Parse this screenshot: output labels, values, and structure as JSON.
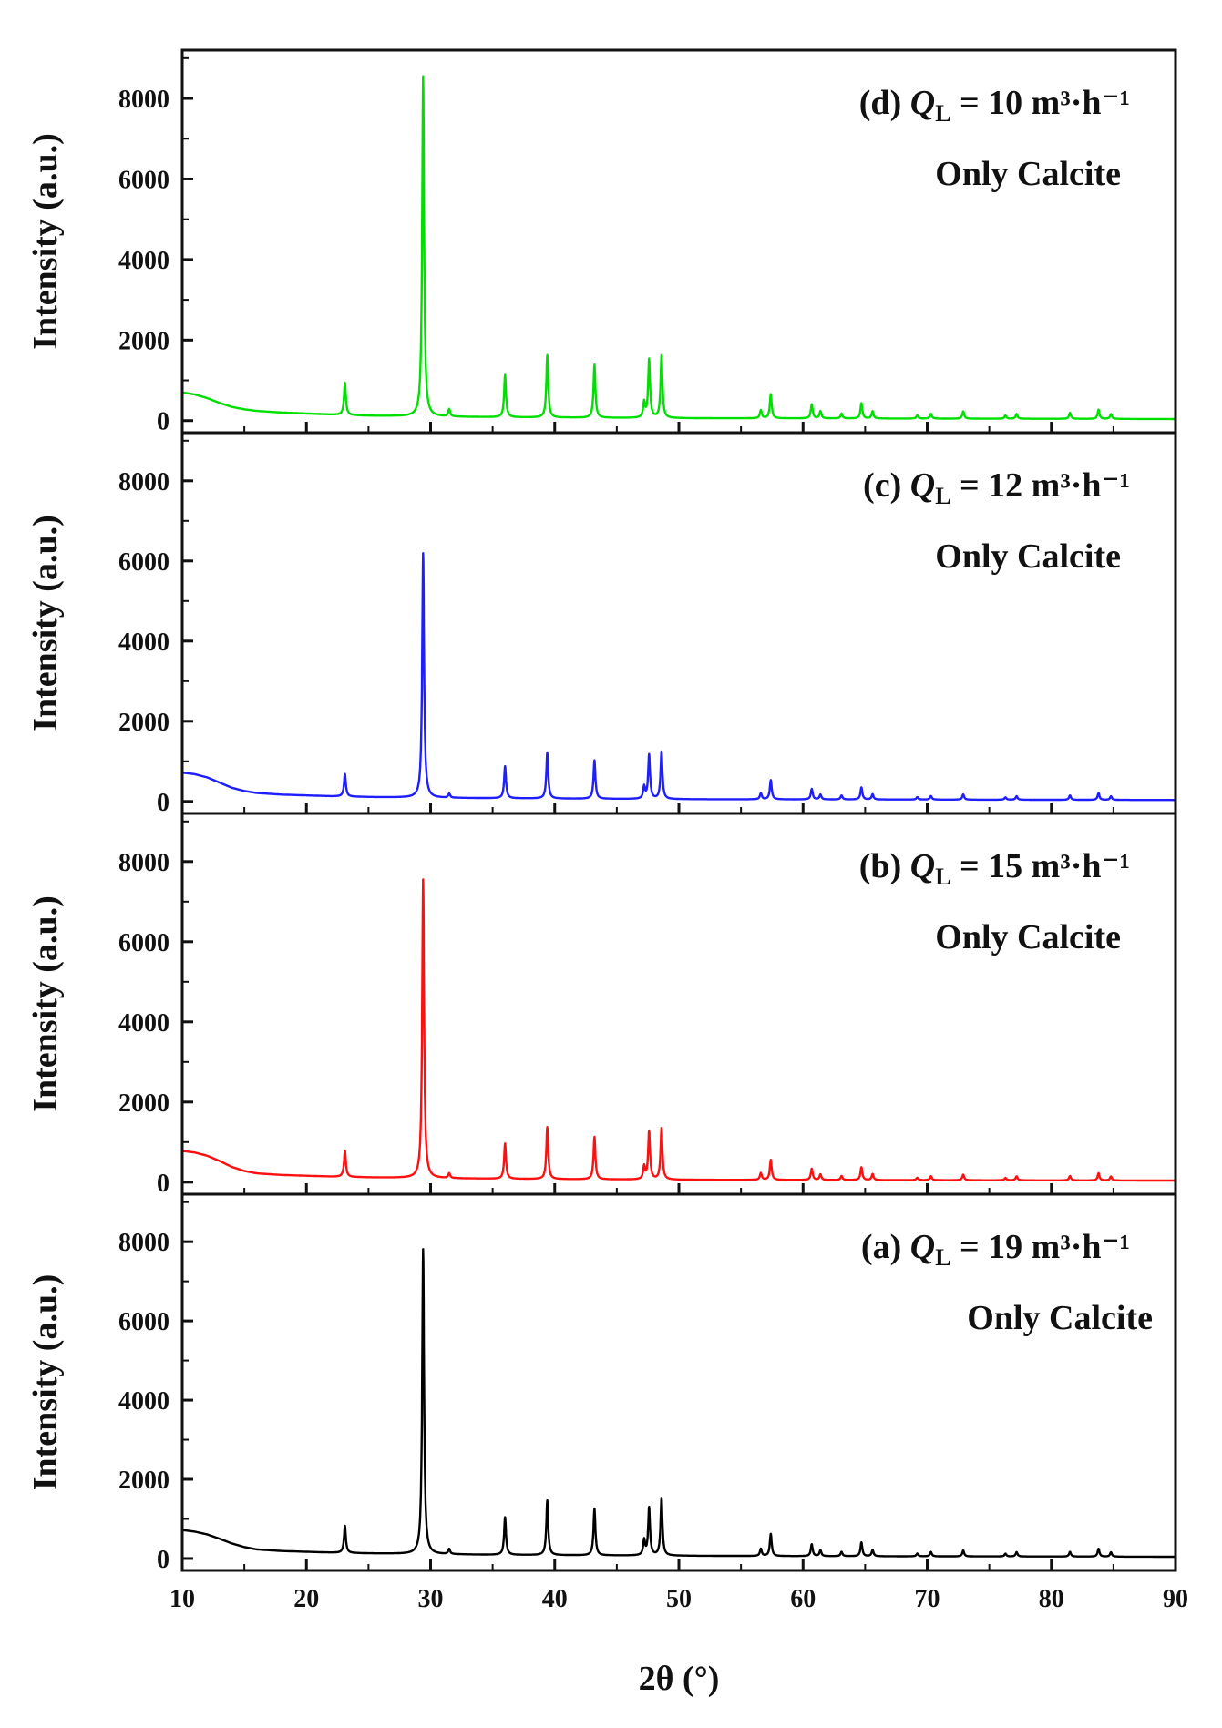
{
  "x_axis": {
    "label": "2θ (°)",
    "ticks": [
      "10",
      "20",
      "30",
      "40",
      "50",
      "60",
      "70",
      "80",
      "90"
    ]
  },
  "y_axis": {
    "label": "Intensity (a.u.)",
    "ticks": [
      "0",
      "2000",
      "4000",
      "6000",
      "8000"
    ]
  },
  "chart_data": [
    {
      "type": "line",
      "panel": "d",
      "annotation": {
        "prefix": "(d) ",
        "var": "Q",
        "sub": "L",
        "rest": " = 10 m³·h⁻¹"
      },
      "note": "Only Calcite",
      "color": "#00e000",
      "xlim": [
        10,
        90
      ],
      "ylim": [
        -300,
        9200
      ],
      "background": [
        [
          10,
          700
        ],
        [
          11,
          650
        ],
        [
          12,
          560
        ],
        [
          13,
          440
        ],
        [
          14,
          340
        ],
        [
          15,
          280
        ],
        [
          16,
          240
        ],
        [
          18,
          200
        ],
        [
          20,
          175
        ],
        [
          22,
          150
        ],
        [
          25,
          120
        ],
        [
          30,
          100
        ],
        [
          35,
          85
        ],
        [
          40,
          75
        ],
        [
          50,
          60
        ],
        [
          60,
          55
        ],
        [
          70,
          50
        ],
        [
          80,
          45
        ],
        [
          90,
          40
        ]
      ],
      "peaks": [
        [
          23.1,
          800
        ],
        [
          29.4,
          8450
        ],
        [
          31.5,
          180
        ],
        [
          36.0,
          1050
        ],
        [
          39.4,
          1550
        ],
        [
          43.2,
          1320
        ],
        [
          47.2,
          380
        ],
        [
          47.6,
          1450
        ],
        [
          48.6,
          1550
        ],
        [
          56.6,
          200
        ],
        [
          57.4,
          600
        ],
        [
          60.7,
          350
        ],
        [
          61.4,
          180
        ],
        [
          63.1,
          120
        ],
        [
          64.7,
          380
        ],
        [
          65.6,
          180
        ],
        [
          69.2,
          80
        ],
        [
          70.3,
          120
        ],
        [
          72.9,
          180
        ],
        [
          76.3,
          80
        ],
        [
          77.2,
          120
        ],
        [
          81.5,
          150
        ],
        [
          83.8,
          230
        ],
        [
          84.8,
          120
        ]
      ]
    },
    {
      "type": "line",
      "panel": "c",
      "annotation": {
        "prefix": "(c) ",
        "var": "Q",
        "sub": "L",
        "rest": " = 12 m³·h⁻¹"
      },
      "note": "Only Calcite",
      "color": "#1e1eff",
      "xlim": [
        10,
        90
      ],
      "ylim": [
        -300,
        9200
      ],
      "background": [
        [
          10,
          720
        ],
        [
          11,
          680
        ],
        [
          12,
          600
        ],
        [
          13,
          470
        ],
        [
          14,
          340
        ],
        [
          15,
          260
        ],
        [
          16,
          210
        ],
        [
          18,
          170
        ],
        [
          20,
          150
        ],
        [
          22,
          130
        ],
        [
          25,
          110
        ],
        [
          30,
          90
        ],
        [
          35,
          80
        ],
        [
          40,
          70
        ],
        [
          50,
          55
        ],
        [
          60,
          50
        ],
        [
          70,
          45
        ],
        [
          80,
          40
        ],
        [
          90,
          35
        ]
      ],
      "peaks": [
        [
          23.1,
          560
        ],
        [
          29.4,
          6100
        ],
        [
          31.5,
          100
        ],
        [
          36.0,
          800
        ],
        [
          39.4,
          1150
        ],
        [
          43.2,
          960
        ],
        [
          47.2,
          300
        ],
        [
          47.6,
          1100
        ],
        [
          48.6,
          1180
        ],
        [
          56.6,
          150
        ],
        [
          57.4,
          480
        ],
        [
          60.7,
          260
        ],
        [
          61.4,
          120
        ],
        [
          63.1,
          100
        ],
        [
          64.7,
          300
        ],
        [
          65.6,
          130
        ],
        [
          69.2,
          60
        ],
        [
          70.3,
          90
        ],
        [
          72.9,
          130
        ],
        [
          76.3,
          60
        ],
        [
          77.2,
          90
        ],
        [
          81.5,
          110
        ],
        [
          83.8,
          170
        ],
        [
          84.8,
          90
        ]
      ]
    },
    {
      "type": "line",
      "panel": "b",
      "annotation": {
        "prefix": "(b) ",
        "var": "Q",
        "sub": "L",
        "rest": " = 15 m³·h⁻¹"
      },
      "note": "Only Calcite",
      "color": "#ff1010",
      "xlim": [
        10,
        90
      ],
      "ylim": [
        -300,
        9200
      ],
      "background": [
        [
          10,
          780
        ],
        [
          11,
          740
        ],
        [
          12,
          660
        ],
        [
          13,
          530
        ],
        [
          14,
          380
        ],
        [
          15,
          280
        ],
        [
          16,
          220
        ],
        [
          18,
          180
        ],
        [
          20,
          160
        ],
        [
          22,
          140
        ],
        [
          25,
          120
        ],
        [
          30,
          100
        ],
        [
          35,
          85
        ],
        [
          40,
          75
        ],
        [
          50,
          60
        ],
        [
          60,
          55
        ],
        [
          70,
          50
        ],
        [
          80,
          45
        ],
        [
          90,
          40
        ]
      ],
      "peaks": [
        [
          23.1,
          650
        ],
        [
          29.4,
          7450
        ],
        [
          31.5,
          120
        ],
        [
          36.0,
          880
        ],
        [
          39.4,
          1300
        ],
        [
          43.2,
          1060
        ],
        [
          47.2,
          320
        ],
        [
          47.6,
          1200
        ],
        [
          48.6,
          1280
        ],
        [
          56.6,
          170
        ],
        [
          57.4,
          500
        ],
        [
          60.7,
          280
        ],
        [
          61.4,
          140
        ],
        [
          63.1,
          100
        ],
        [
          64.7,
          320
        ],
        [
          65.6,
          150
        ],
        [
          69.2,
          60
        ],
        [
          70.3,
          100
        ],
        [
          72.9,
          140
        ],
        [
          76.3,
          60
        ],
        [
          77.2,
          100
        ],
        [
          81.5,
          110
        ],
        [
          83.8,
          180
        ],
        [
          84.8,
          100
        ]
      ]
    },
    {
      "type": "line",
      "panel": "a",
      "annotation": {
        "prefix": "(a) ",
        "var": "Q",
        "sub": "L",
        "rest": " = 19 m³·h⁻¹"
      },
      "note": "Only Calcite",
      "color": "#000000",
      "xlim": [
        10,
        90
      ],
      "ylim": [
        -300,
        9200
      ],
      "background": [
        [
          10,
          720
        ],
        [
          11,
          680
        ],
        [
          12,
          610
        ],
        [
          13,
          500
        ],
        [
          14,
          380
        ],
        [
          15,
          290
        ],
        [
          16,
          230
        ],
        [
          18,
          190
        ],
        [
          20,
          170
        ],
        [
          22,
          150
        ],
        [
          25,
          130
        ],
        [
          30,
          110
        ],
        [
          35,
          95
        ],
        [
          40,
          85
        ],
        [
          50,
          70
        ],
        [
          60,
          60
        ],
        [
          70,
          55
        ],
        [
          80,
          50
        ],
        [
          90,
          45
        ]
      ],
      "peaks": [
        [
          23.1,
          680
        ],
        [
          29.4,
          7700
        ],
        [
          31.5,
          130
        ],
        [
          36.0,
          950
        ],
        [
          39.4,
          1380
        ],
        [
          43.2,
          1180
        ],
        [
          47.2,
          380
        ],
        [
          47.6,
          1200
        ],
        [
          48.6,
          1450
        ],
        [
          56.6,
          180
        ],
        [
          57.4,
          560
        ],
        [
          60.7,
          300
        ],
        [
          61.4,
          150
        ],
        [
          63.1,
          110
        ],
        [
          64.7,
          350
        ],
        [
          65.6,
          160
        ],
        [
          69.2,
          70
        ],
        [
          70.3,
          110
        ],
        [
          72.9,
          150
        ],
        [
          76.3,
          70
        ],
        [
          77.2,
          110
        ],
        [
          81.5,
          120
        ],
        [
          83.8,
          200
        ],
        [
          84.8,
          110
        ]
      ]
    }
  ]
}
